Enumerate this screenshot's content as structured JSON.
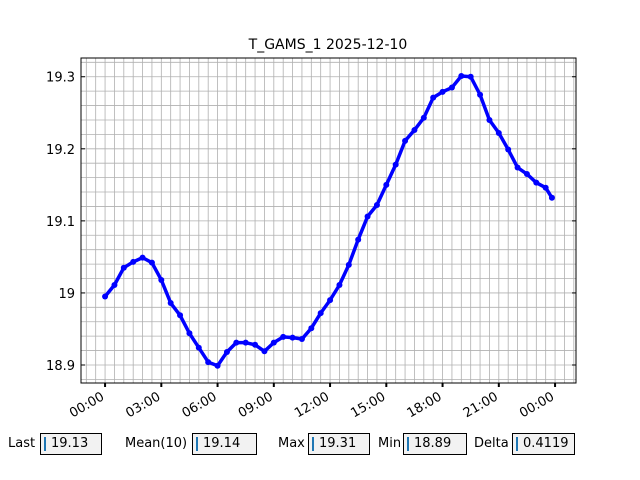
{
  "chart_data": {
    "type": "line",
    "title": "T_GAMS_1 2025-12-10",
    "x": [
      "2025-12-10T00:00",
      "2025-12-10T00:30",
      "2025-12-10T01:00",
      "2025-12-10T01:30",
      "2025-12-10T02:00",
      "2025-12-10T02:30",
      "2025-12-10T03:00",
      "2025-12-10T03:30",
      "2025-12-10T04:00",
      "2025-12-10T04:30",
      "2025-12-10T05:00",
      "2025-12-10T05:30",
      "2025-12-10T06:00",
      "2025-12-10T06:30",
      "2025-12-10T07:00",
      "2025-12-10T07:30",
      "2025-12-10T08:00",
      "2025-12-10T08:30",
      "2025-12-10T09:00",
      "2025-12-10T09:30",
      "2025-12-10T10:00",
      "2025-12-10T10:30",
      "2025-12-10T11:00",
      "2025-12-10T11:30",
      "2025-12-10T12:00",
      "2025-12-10T12:30",
      "2025-12-10T13:00",
      "2025-12-10T13:30",
      "2025-12-10T14:00",
      "2025-12-10T14:30",
      "2025-12-10T15:00",
      "2025-12-10T15:30",
      "2025-12-10T16:00",
      "2025-12-10T16:30",
      "2025-12-10T17:00",
      "2025-12-10T17:30",
      "2025-12-10T18:00",
      "2025-12-10T18:30",
      "2025-12-10T19:00",
      "2025-12-10T19:30",
      "2025-12-10T20:00",
      "2025-12-10T20:30",
      "2025-12-10T21:00",
      "2025-12-10T21:30",
      "2025-12-10T22:00",
      "2025-12-10T22:30",
      "2025-12-10T23:00",
      "2025-12-10T23:30",
      "2025-12-10T23:50"
    ],
    "series": [
      {
        "color": "#0000ff",
        "values": [
          18.995,
          19.011,
          19.035,
          19.043,
          19.049,
          19.042,
          19.018,
          18.986,
          18.969,
          18.944,
          18.924,
          18.904,
          18.899,
          18.918,
          18.931,
          18.931,
          18.928,
          18.919,
          18.931,
          18.939,
          18.938,
          18.936,
          18.951,
          18.972,
          18.99,
          19.011,
          19.039,
          19.074,
          19.106,
          19.122,
          19.15,
          19.178,
          19.211,
          19.226,
          19.243,
          19.271,
          19.279,
          19.285,
          19.301,
          19.3,
          19.275,
          19.24,
          19.222,
          19.199,
          19.174,
          19.165,
          19.153,
          19.146,
          19.132
        ]
      }
    ],
    "xlim": [
      "2025-12-09T22:43",
      "2025-12-11T01:07"
    ],
    "ylim": [
      18.875,
      19.326
    ],
    "xticks": [
      {
        "value": "2025-12-10T00:00",
        "label": "00:00"
      },
      {
        "value": "2025-12-10T03:00",
        "label": "03:00"
      },
      {
        "value": "2025-12-10T06:00",
        "label": "06:00"
      },
      {
        "value": "2025-12-10T09:00",
        "label": "09:00"
      },
      {
        "value": "2025-12-10T12:00",
        "label": "12:00"
      },
      {
        "value": "2025-12-10T15:00",
        "label": "15:00"
      },
      {
        "value": "2025-12-10T18:00",
        "label": "18:00"
      },
      {
        "value": "2025-12-10T21:00",
        "label": "21:00"
      },
      {
        "value": "2025-12-11T00:00",
        "label": "00:00"
      }
    ],
    "yticks": [
      18.9,
      19.0,
      19.1,
      19.2,
      19.3
    ],
    "xminorticks": [
      "2025-12-09T23:00",
      "2025-12-09T23:30",
      "2025-12-10T00:00",
      "2025-12-10T00:30",
      "2025-12-10T01:00",
      "2025-12-10T01:30",
      "2025-12-10T02:00",
      "2025-12-10T02:30",
      "2025-12-10T03:00",
      "2025-12-10T03:30",
      "2025-12-10T04:00",
      "2025-12-10T04:30",
      "2025-12-10T05:00",
      "2025-12-10T05:30",
      "2025-12-10T06:00",
      "2025-12-10T06:30",
      "2025-12-10T07:00",
      "2025-12-10T07:30",
      "2025-12-10T08:00",
      "2025-12-10T08:30",
      "2025-12-10T09:00",
      "2025-12-10T09:30",
      "2025-12-10T10:00",
      "2025-12-10T10:30",
      "2025-12-10T11:00",
      "2025-12-10T11:30",
      "2025-12-10T12:00",
      "2025-12-10T12:30",
      "2025-12-10T13:00",
      "2025-12-10T13:30",
      "2025-12-10T14:00",
      "2025-12-10T14:30",
      "2025-12-10T15:00",
      "2025-12-10T15:30",
      "2025-12-10T16:00",
      "2025-12-10T16:30",
      "2025-12-10T17:00",
      "2025-12-10T17:30",
      "2025-12-10T18:00",
      "2025-12-10T18:30",
      "2025-12-10T19:00",
      "2025-12-10T19:30",
      "2025-12-10T20:00",
      "2025-12-10T20:30",
      "2025-12-10T21:00",
      "2025-12-10T21:30",
      "2025-12-10T22:00",
      "2025-12-10T22:30",
      "2025-12-10T23:00",
      "2025-12-10T23:30",
      "2025-12-11T00:00",
      "2025-12-11T00:30",
      "2025-12-11T01:00"
    ],
    "yminorticks": [
      18.88,
      18.9,
      18.92,
      18.94,
      18.96,
      18.98,
      19.0,
      19.02,
      19.04,
      19.06,
      19.08,
      19.1,
      19.12,
      19.14,
      19.16,
      19.18,
      19.2,
      19.22,
      19.24,
      19.26,
      19.28,
      19.3,
      19.32
    ],
    "grid": true
  },
  "controls": [
    {
      "label": "Last",
      "value": "19.13"
    },
    {
      "label": "Mean(10)",
      "value": "19.14"
    },
    {
      "label": "Max",
      "value": "19.31"
    },
    {
      "label": "Min",
      "value": "18.89"
    },
    {
      "label": "Delta",
      "value": "0.4119"
    }
  ]
}
